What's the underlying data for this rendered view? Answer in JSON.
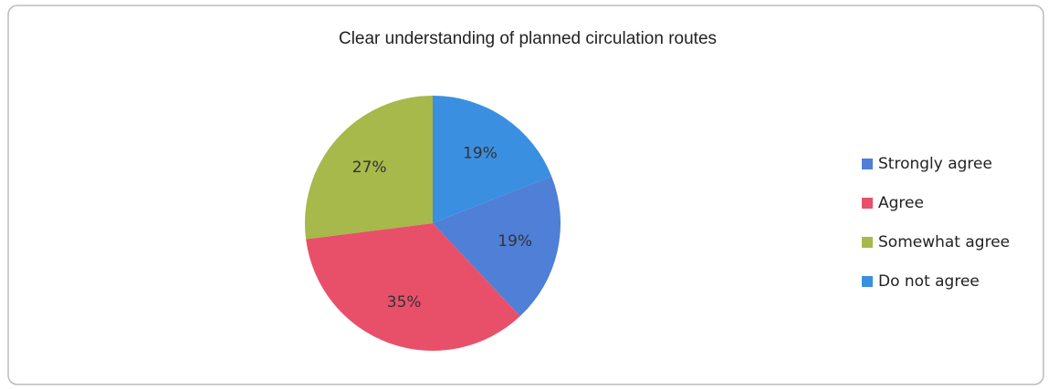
{
  "chart_data": {
    "type": "pie",
    "title": "Clear understanding of planned circulation routes",
    "categories": [
      "Strongly agree",
      "Agree",
      "Somewhat agree",
      "Do not agree"
    ],
    "values": [
      19,
      35,
      27,
      19
    ],
    "value_labels": [
      "19%",
      "35%",
      "27%",
      "19%"
    ],
    "colors": [
      "#4f7fd6",
      "#e8506a",
      "#a6b94a",
      "#3a8fe0"
    ],
    "legend": "right"
  }
}
